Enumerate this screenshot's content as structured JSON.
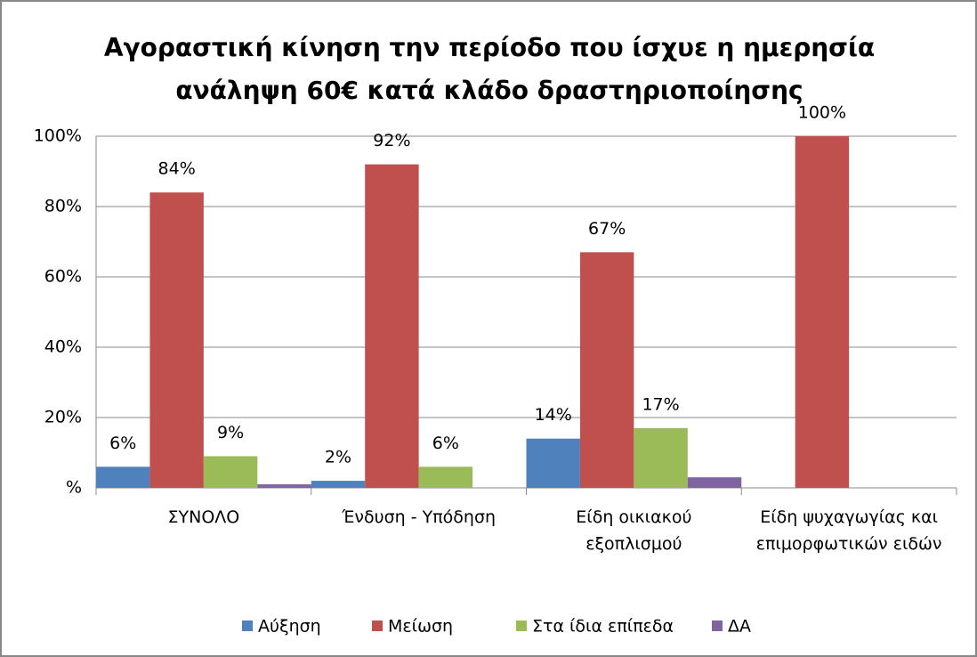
{
  "chart_data": {
    "type": "bar",
    "title": "Αγοραστική κίνηση την περίοδο που ίσχυε η ημερησία ανάληψη 60€ κατά κλάδο δραστηριοποίησης",
    "categories": [
      "ΣΥΝΟΛΟ",
      "Ένδυση - Υπόδηση",
      "Είδη οικιακού εξοπλισμού",
      "Είδη ψυχαγωγίας και επιμορφωτικών ειδών"
    ],
    "series": [
      {
        "name": "Αύξηση",
        "color": "#4f81bd",
        "values": [
          6,
          2,
          14,
          0
        ],
        "value_labels": [
          "6%",
          "2%",
          "14%",
          null
        ]
      },
      {
        "name": "Μείωση",
        "color": "#c0504d",
        "values": [
          84,
          92,
          67,
          100
        ],
        "value_labels": [
          "84%",
          "92%",
          "67%",
          "100%"
        ]
      },
      {
        "name": "Στα ίδια επίπεδα",
        "color": "#9bbb59",
        "values": [
          9,
          6,
          17,
          0
        ],
        "value_labels": [
          "9%",
          "6%",
          "17%",
          null
        ]
      },
      {
        "name": "ΔΑ",
        "color": "#8064a2",
        "values": [
          1,
          0,
          3,
          0
        ],
        "value_labels": [
          null,
          null,
          null,
          null
        ]
      }
    ],
    "ylim": [
      0,
      100
    ],
    "yticks": [
      {
        "value": 0,
        "label": "%"
      },
      {
        "value": 20,
        "label": "20%"
      },
      {
        "value": 40,
        "label": "40%"
      },
      {
        "value": 60,
        "label": "60%"
      },
      {
        "value": 80,
        "label": "80%"
      },
      {
        "value": 100,
        "label": "100%"
      }
    ],
    "grid": true,
    "legend": "bottom"
  }
}
